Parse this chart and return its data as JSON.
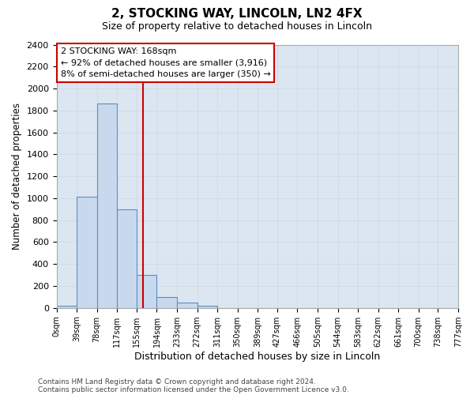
{
  "title": "2, STOCKING WAY, LINCOLN, LN2 4FX",
  "subtitle": "Size of property relative to detached houses in Lincoln",
  "xlabel": "Distribution of detached houses by size in Lincoln",
  "ylabel": "Number of detached properties",
  "bin_edges": [
    0,
    39,
    78,
    117,
    155,
    194,
    233,
    272,
    311,
    350,
    389,
    427,
    466,
    505,
    544,
    583,
    622,
    661,
    700,
    738,
    777
  ],
  "bin_labels": [
    "0sqm",
    "39sqm",
    "78sqm",
    "117sqm",
    "155sqm",
    "194sqm",
    "233sqm",
    "272sqm",
    "311sqm",
    "350sqm",
    "389sqm",
    "427sqm",
    "466sqm",
    "505sqm",
    "544sqm",
    "583sqm",
    "622sqm",
    "661sqm",
    "700sqm",
    "738sqm",
    "777sqm"
  ],
  "bar_heights": [
    20,
    1010,
    1860,
    900,
    300,
    100,
    50,
    20,
    0,
    0,
    0,
    0,
    0,
    0,
    0,
    0,
    0,
    0,
    0,
    0
  ],
  "bar_color": "#c9d9ed",
  "bar_edge_color": "#5b8ec4",
  "property_line_x": 168,
  "property_line_color": "#cc0000",
  "annotation_line1": "2 STOCKING WAY: 168sqm",
  "annotation_line2": "← 92% of detached houses are smaller (3,916)",
  "annotation_line3": "8% of semi-detached houses are larger (350) →",
  "annotation_box_color": "#ffffff",
  "annotation_box_edge": "#cc0000",
  "ylim": [
    0,
    2400
  ],
  "yticks": [
    0,
    200,
    400,
    600,
    800,
    1000,
    1200,
    1400,
    1600,
    1800,
    2000,
    2200,
    2400
  ],
  "grid_color": "#d0d8e8",
  "background_color": "#dce6f1",
  "plot_bg_color": "#dce6f1",
  "footer_line1": "Contains HM Land Registry data © Crown copyright and database right 2024.",
  "footer_line2": "Contains public sector information licensed under the Open Government Licence v3.0."
}
